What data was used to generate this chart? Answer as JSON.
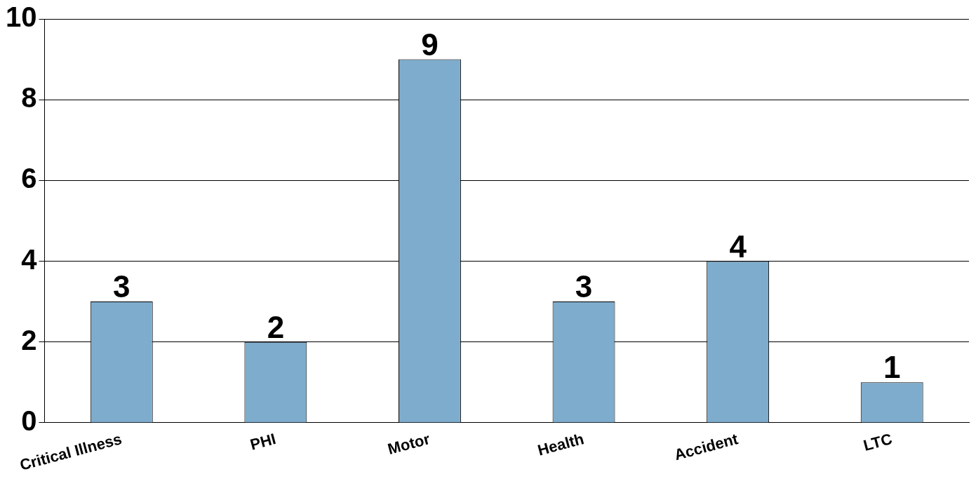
{
  "chart_data": {
    "type": "bar",
    "categories": [
      "Critical Illness",
      "PHI",
      "Motor",
      "Health",
      "Accident",
      "LTC"
    ],
    "values": [
      3,
      2,
      9,
      3,
      4,
      1
    ],
    "color": "#7eaccc",
    "ylim": [
      0,
      10
    ],
    "yticks": [
      0,
      2,
      4,
      6,
      8,
      10
    ],
    "grid": "y",
    "data_labels": true,
    "legend": false
  }
}
